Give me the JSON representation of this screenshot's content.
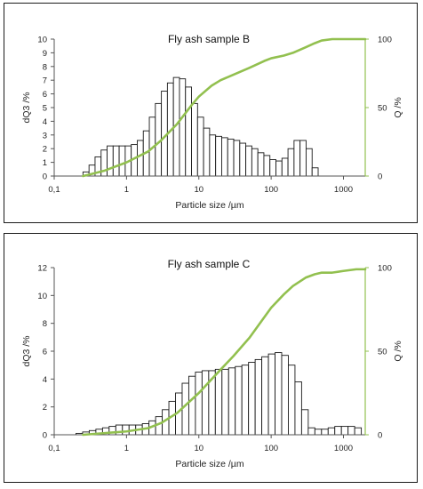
{
  "charts": [
    {
      "id": "b",
      "chart_data": {
        "type": "bar",
        "title": "Fly ash sample B",
        "xlabel": "Particle  size /µm",
        "ylabel_left": "dQ3 /%",
        "ylabel_right": "Q /%",
        "x_scale": "log",
        "xlim": [
          0.1,
          2000
        ],
        "ylim_left": [
          0,
          10
        ],
        "ylim_right": [
          0,
          100
        ],
        "xtick_labels": [
          "0,1",
          "1",
          "10",
          "100",
          "1000"
        ],
        "xtick_values": [
          0.1,
          1,
          10,
          100,
          1000
        ],
        "ytick_left": [
          "0",
          "1",
          "2",
          "3",
          "4",
          "5",
          "6",
          "7",
          "8",
          "9",
          "10"
        ],
        "ytick_left_values": [
          0,
          1,
          2,
          3,
          4,
          5,
          6,
          7,
          8,
          9,
          10
        ],
        "ytick_right": [
          "0",
          "50",
          "100"
        ],
        "ytick_right_values": [
          0,
          50,
          100
        ],
        "bin_edges": [
          0.25,
          0.303,
          0.367,
          0.445,
          0.539,
          0.653,
          0.791,
          0.959,
          1.162,
          1.408,
          1.706,
          2.067,
          2.504,
          3.034,
          3.676,
          4.454,
          5.397,
          6.539,
          7.923,
          9.6,
          11.63,
          14.09,
          17.08,
          20.69,
          25.07,
          30.38,
          36.81,
          44.6,
          54.04,
          65.47,
          79.33,
          96.12,
          116.5,
          141.1,
          171,
          207.2,
          251,
          304.2,
          368.5,
          446.5,
          541
        ],
        "histogram": [
          0.3,
          0.8,
          1.4,
          1.9,
          2.2,
          2.2,
          2.2,
          2.2,
          2.3,
          2.6,
          3.3,
          4.3,
          5.3,
          6.2,
          6.8,
          7.2,
          7.1,
          6.5,
          5.3,
          4.3,
          3.5,
          3.0,
          2.9,
          2.8,
          2.7,
          2.6,
          2.4,
          2.2,
          2.0,
          1.7,
          1.5,
          1.2,
          1.1,
          1.3,
          2.0,
          2.6,
          2.6,
          2.0,
          0.6,
          0.0
        ],
        "cumulative": {
          "x": [
            0.25,
            0.3,
            0.5,
            1,
            2,
            3,
            5,
            8,
            10,
            15,
            20,
            30,
            50,
            80,
            100,
            150,
            200,
            300,
            400,
            500,
            700,
            1000,
            2000
          ],
          "y": [
            0,
            1,
            4,
            10,
            18,
            26,
            38,
            52,
            58,
            66,
            70,
            74,
            79,
            84,
            86,
            88,
            90,
            94,
            97,
            99,
            100,
            100,
            100
          ]
        },
        "colors": {
          "bar_fill": "#ffffff",
          "bar_edge": "#1a1a1a",
          "cumulative": "#92c04f"
        }
      }
    },
    {
      "id": "c",
      "chart_data": {
        "type": "bar",
        "title": "Fly ash sample C",
        "xlabel": "Particle  size /µm",
        "ylabel_left": "dQ3 /%",
        "ylabel_right": "Q /%",
        "x_scale": "log",
        "xlim": [
          0.1,
          2000
        ],
        "ylim_left": [
          0,
          12
        ],
        "ylim_right": [
          0,
          100
        ],
        "xtick_labels": [
          "0,1",
          "1",
          "10",
          "100",
          "1000"
        ],
        "xtick_values": [
          0.1,
          1,
          10,
          100,
          1000
        ],
        "ytick_left": [
          "0",
          "2",
          "4",
          "6",
          "8",
          "10",
          "12"
        ],
        "ytick_left_values": [
          0,
          2,
          4,
          6,
          8,
          10,
          12
        ],
        "ytick_right": [
          "0",
          "50",
          "100"
        ],
        "ytick_right_values": [
          0,
          50,
          100
        ],
        "bin_edges": [
          0.2,
          0.247,
          0.305,
          0.377,
          0.466,
          0.575,
          0.711,
          0.878,
          1.085,
          1.34,
          1.655,
          2.044,
          2.525,
          3.12,
          3.853,
          4.76,
          5.88,
          7.26,
          8.97,
          11.08,
          13.69,
          16.91,
          20.89,
          25.81,
          31.88,
          39.38,
          48.64,
          60.1,
          74.2,
          91.7,
          113.3,
          139.9,
          172.8,
          213.5,
          263.7,
          325.8,
          402.5,
          497.2,
          614.2,
          758.7,
          937.3,
          1158,
          1430,
          1766
        ],
        "histogram": [
          0.1,
          0.2,
          0.3,
          0.4,
          0.5,
          0.6,
          0.7,
          0.7,
          0.7,
          0.7,
          0.8,
          1.0,
          1.3,
          1.8,
          2.4,
          3.0,
          3.7,
          4.2,
          4.5,
          4.6,
          4.6,
          4.7,
          4.7,
          4.8,
          4.9,
          5.0,
          5.2,
          5.4,
          5.6,
          5.8,
          5.9,
          5.7,
          5.0,
          3.8,
          1.8,
          0.5,
          0.4,
          0.4,
          0.5,
          0.6,
          0.6,
          0.6,
          0.5
        ],
        "cumulative": {
          "x": [
            0.25,
            0.5,
            1,
            2,
            3,
            5,
            10,
            20,
            30,
            50,
            100,
            150,
            200,
            300,
            400,
            500,
            700,
            1000,
            1500,
            2000
          ],
          "y": [
            0,
            1,
            2,
            4,
            7,
            13,
            25,
            39,
            47,
            58,
            76,
            84,
            89,
            94,
            96,
            97,
            97,
            98,
            99,
            99
          ]
        },
        "colors": {
          "bar_fill": "#ffffff",
          "bar_edge": "#1a1a1a",
          "cumulative": "#92c04f"
        }
      }
    }
  ]
}
